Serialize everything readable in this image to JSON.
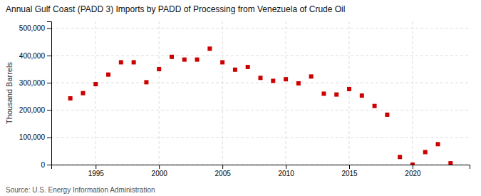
{
  "chart_data": {
    "type": "scatter",
    "title": "Annual Gulf Coast (PADD 3) Imports by PADD of Processing from Venezuela of Crude Oil",
    "ylabel": "Thousand Barrels",
    "source": "Source: U.S. Energy Information Administration",
    "x": [
      1993,
      1994,
      1995,
      1996,
      1997,
      1998,
      1999,
      2000,
      2001,
      2002,
      2003,
      2004,
      2005,
      2006,
      2007,
      2008,
      2009,
      2010,
      2011,
      2012,
      2013,
      2014,
      2015,
      2016,
      2017,
      2018,
      2019,
      2020,
      2021,
      2022,
      2023
    ],
    "values": [
      243000,
      262000,
      295000,
      330000,
      375000,
      375000,
      302000,
      350000,
      395000,
      385000,
      385000,
      425000,
      375000,
      348000,
      358000,
      318000,
      307000,
      313000,
      298000,
      323000,
      260000,
      257000,
      277000,
      253000,
      215000,
      183000,
      28000,
      0,
      46000,
      75000,
      5000
    ],
    "color": "#cc0000",
    "marker": "square",
    "xlim": [
      1991.5,
      2024.5
    ],
    "xticks": [
      1995,
      2000,
      2005,
      2010,
      2015,
      2020
    ],
    "ylim": [
      0,
      525000
    ],
    "yticks": [
      0,
      {
        "value": 100000,
        "label": "100,000"
      },
      {
        "value": 200000,
        "label": "200,000"
      },
      {
        "value": 300000,
        "label": "300,000"
      },
      {
        "value": 400000,
        "label": "400,000"
      },
      {
        "value": 500000,
        "label": "500,000"
      }
    ],
    "grid": true
  }
}
